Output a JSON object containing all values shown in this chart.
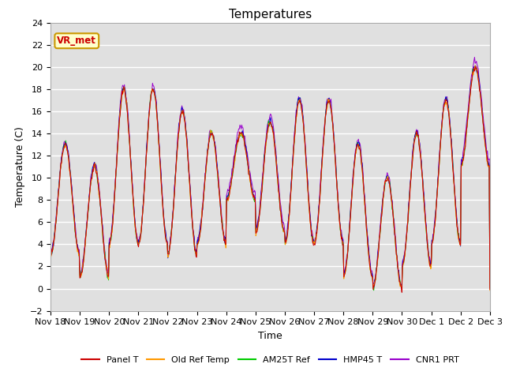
{
  "title": "Temperatures",
  "xlabel": "Time",
  "ylabel": "Temperature (C)",
  "ylim": [
    -2,
    24
  ],
  "yticks": [
    -2,
    0,
    2,
    4,
    6,
    8,
    10,
    12,
    14,
    16,
    18,
    20,
    22,
    24
  ],
  "x_tick_labels": [
    "Nov 18",
    "Nov 19",
    "Nov 20",
    "Nov 21",
    "Nov 22",
    "Nov 23",
    "Nov 24",
    "Nov 25",
    "Nov 26",
    "Nov 27",
    "Nov 28",
    "Nov 29",
    "Nov 30",
    "Dec 1",
    "Dec 2",
    "Dec 3"
  ],
  "series_colors": {
    "Panel T": "#cc0000",
    "Old Ref Temp": "#ff9900",
    "AM25T Ref": "#00cc00",
    "HMP45 T": "#0000cc",
    "CNR1 PRT": "#9900cc"
  },
  "legend_label": "VR_met",
  "legend_bg": "#ffffcc",
  "legend_border": "#cc9900",
  "background_color": "#e0e0e0",
  "grid_color": "#ffffff",
  "title_fontsize": 11,
  "axis_fontsize": 9,
  "tick_fontsize": 8,
  "day_baselines": [
    3,
    1,
    4,
    4,
    3,
    4,
    8,
    5,
    4,
    4,
    1,
    0,
    2,
    4,
    11
  ],
  "day_amplitudes": [
    10,
    10,
    14,
    14,
    13,
    10,
    6,
    10,
    13,
    13,
    12,
    10,
    12,
    13,
    9
  ]
}
